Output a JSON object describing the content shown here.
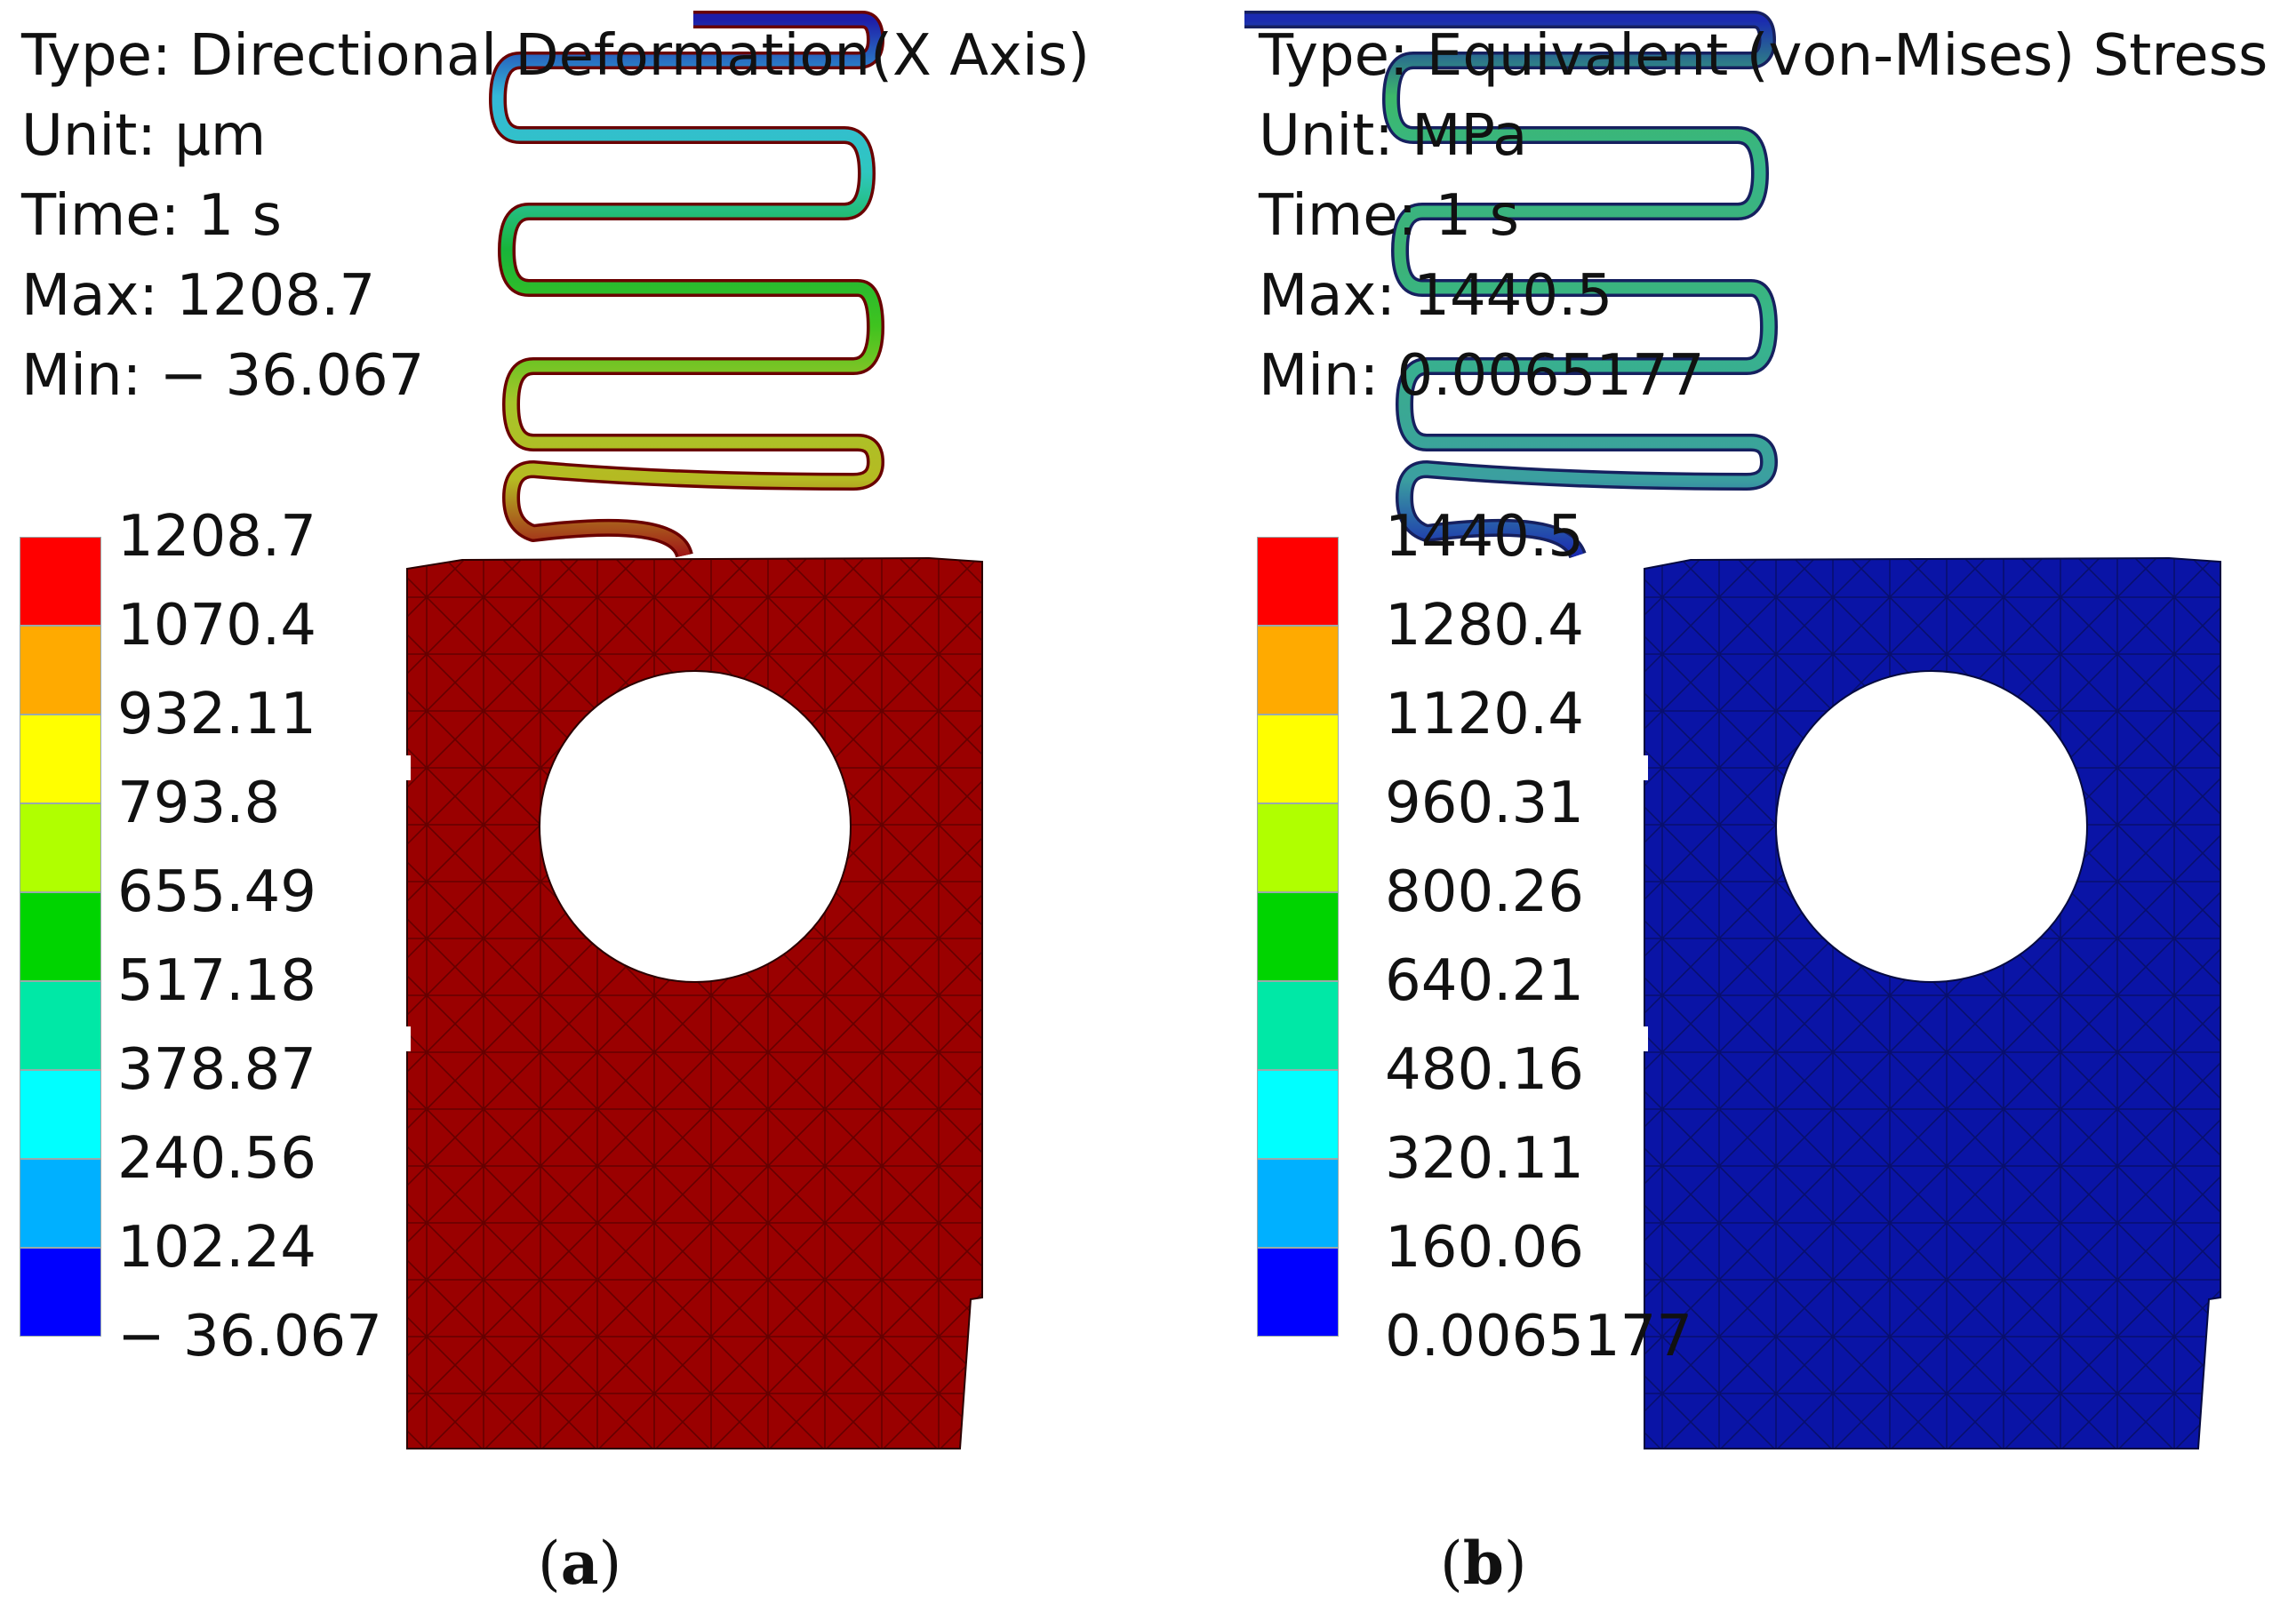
{
  "panels": [
    {
      "caption_open": "(",
      "caption_letter": "a",
      "caption_close": ")",
      "info": {
        "type": "Type: Directional Deformation(X Axis)",
        "unit": "Unit: µm",
        "time": "Time: 1 s",
        "max": "Max: 1208.7",
        "min": "Min: − 36.067"
      },
      "legend_values": [
        "1208.7",
        "1070.4",
        "932.11",
        "793.8",
        "655.49",
        "517.18",
        "378.87",
        "240.56",
        "102.24",
        "− 36.067"
      ],
      "body_color": "#9a0000",
      "spring_gradient": [
        "#1d1da8",
        "#34b8d8",
        "#2fc7bf",
        "#18b43a",
        "#3fc31f",
        "#a7c52a",
        "#b5ba22",
        "#a01818"
      ]
    },
    {
      "caption_open": "(",
      "caption_letter": "b",
      "caption_close": ")",
      "info": {
        "type": "Type: Equivalent (von-Mises) Stress",
        "unit": "Unit: MPa",
        "time": "Time: 1 s",
        "max": "Max: 1440.5",
        "min": "Min: 0.0065177"
      },
      "legend_values": [
        "1440.5",
        "1280.4",
        "1120.4",
        "960.31",
        "800.26",
        "640.21",
        "480.16",
        "320.11",
        "160.06",
        "0.0065177"
      ],
      "body_color": "#0a14a6",
      "spring_gradient": [
        "#1a2ab0",
        "#3cb86a",
        "#37b58a",
        "#3db273",
        "#36b68c",
        "#3aa992",
        "#3b9fa0",
        "#1a2ab0"
      ]
    }
  ],
  "legend_colors": [
    "#ff0000",
    "#ffaa00",
    "#ffff00",
    "#b0ff00",
    "#00d400",
    "#00e8a6",
    "#00ffff",
    "#00b0ff",
    "#0000ff"
  ]
}
